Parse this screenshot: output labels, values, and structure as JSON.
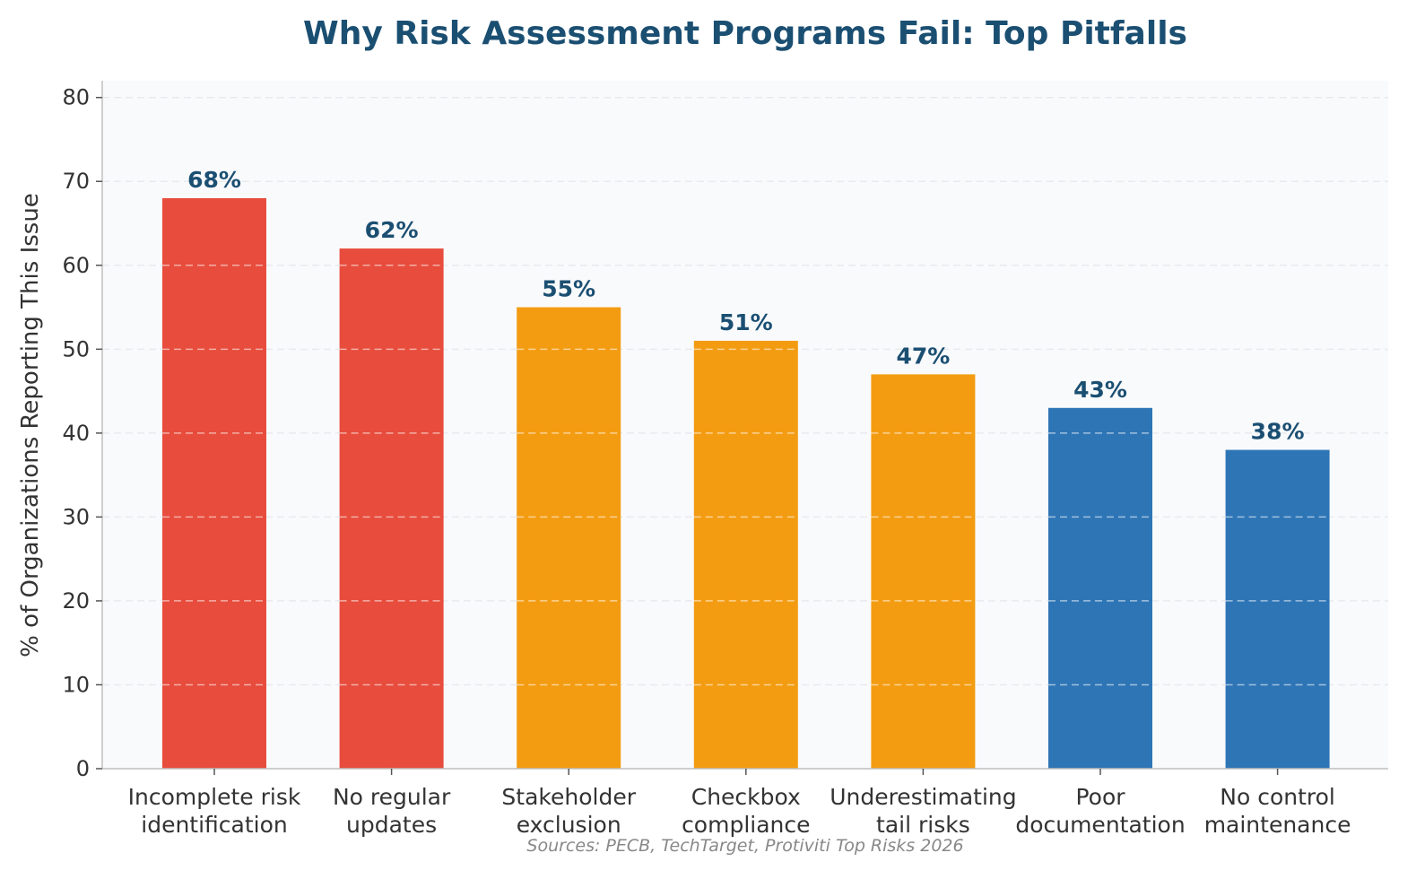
{
  "chart_data": {
    "type": "bar",
    "title": "Why Risk Assessment Programs Fail: Top Pitfalls",
    "ylabel": "% of Organizations Reporting This Issue",
    "xlabel": "",
    "source": "Sources: PECB, TechTarget, Protiviti Top Risks 2026",
    "ylim": [
      0,
      82
    ],
    "yticks": [
      0,
      10,
      20,
      30,
      40,
      50,
      60,
      70,
      80
    ],
    "grid": true,
    "categories": [
      [
        "Incomplete risk",
        "identification"
      ],
      [
        "No regular",
        "updates"
      ],
      [
        "Stakeholder",
        "exclusion"
      ],
      [
        "Checkbox",
        "compliance"
      ],
      [
        "Underestimating",
        "tail risks"
      ],
      [
        "Poor",
        "documentation"
      ],
      [
        "No control",
        "maintenance"
      ]
    ],
    "values": [
      68,
      62,
      55,
      51,
      47,
      43,
      38
    ],
    "value_labels": [
      "68%",
      "62%",
      "55%",
      "51%",
      "47%",
      "43%",
      "38%"
    ],
    "colors": [
      "#e74c3c",
      "#e74c3c",
      "#f39c12",
      "#f39c12",
      "#f39c12",
      "#2e75b6",
      "#2e75b6"
    ],
    "plot_background": "#f9fafc",
    "grid_color": "#e8eaee"
  }
}
